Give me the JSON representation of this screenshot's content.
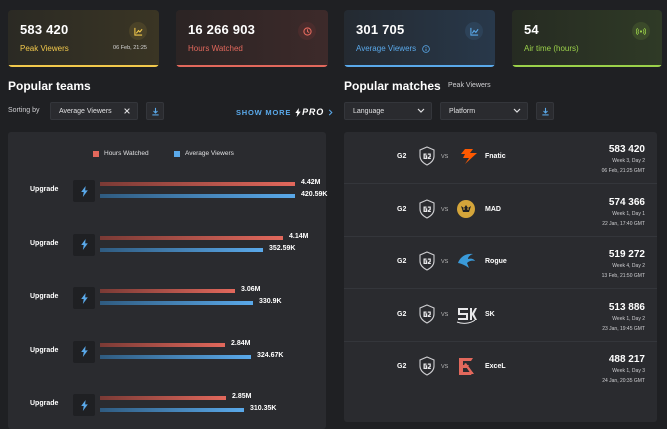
{
  "stats": [
    {
      "value": "583 420",
      "label": "Peak Viewers",
      "date": "06 Feb, 21:25",
      "icon": "chart-up-icon",
      "color": "#f2c94c"
    },
    {
      "value": "16 266 903",
      "label": "Hours Watched",
      "icon": "clock-icon",
      "color": "#e2685c"
    },
    {
      "value": "301 705",
      "label": "Average Viewers",
      "icon": "chart-avg-icon",
      "color": "#5aa9ea"
    },
    {
      "value": "54",
      "label": "Air time (hours)",
      "icon": "broadcast-icon",
      "color": "#9bd14a"
    }
  ],
  "teams": {
    "title": "Popular teams",
    "sorting_label": "Sorting by",
    "sorting_value": "Average Viewers",
    "show_more": "SHOW MORE",
    "pro_label": "PRO",
    "legend": {
      "hours": "Hours Watched",
      "avg": "Average Viewers"
    },
    "max_value": 4.42,
    "rows": [
      {
        "label": "Upgrade",
        "hours": 4.42,
        "hours_text": "4.42M",
        "avg": 420.59,
        "avg_text": "420.59K"
      },
      {
        "label": "Upgrade",
        "hours": 4.14,
        "hours_text": "4.14M",
        "avg": 352.59,
        "avg_text": "352.59K"
      },
      {
        "label": "Upgrade",
        "hours": 3.06,
        "hours_text": "3.06M",
        "avg": 330.9,
        "avg_text": "330.9K"
      },
      {
        "label": "Upgrade",
        "hours": 2.84,
        "hours_text": "2.84M",
        "avg": 324.67,
        "avg_text": "324.67K"
      },
      {
        "label": "Upgrade",
        "hours": 2.85,
        "hours_text": "2.85M",
        "avg": 310.35,
        "avg_text": "310.35K"
      }
    ]
  },
  "matches": {
    "title": "Popular matches",
    "subtitle": "Peak Viewers",
    "filters": {
      "language": "Language",
      "platform": "Platform"
    },
    "rows": [
      {
        "team_a": "G2",
        "vs": "VS",
        "team_b": "Fnatic",
        "viewers": "583 420",
        "week": "Week 3, Day 2",
        "date": "06 Feb, 21:25 GMT",
        "logo_b": "fnatic-logo-icon"
      },
      {
        "team_a": "G2",
        "vs": "VS",
        "team_b": "MAD",
        "viewers": "574 366",
        "week": "Week 1, Day 1",
        "date": "22 Jan, 17:40 GMT",
        "logo_b": "mad-lions-logo-icon"
      },
      {
        "team_a": "G2",
        "vs": "VS",
        "team_b": "Rogue",
        "viewers": "519 272",
        "week": "Week 4, Day 2",
        "date": "13 Feb, 21:50 GMT",
        "logo_b": "rogue-logo-icon"
      },
      {
        "team_a": "G2",
        "vs": "VS",
        "team_b": "SK",
        "viewers": "513 886",
        "week": "Week 1, Day 2",
        "date": "23 Jan, 19:45 GMT",
        "logo_b": "sk-logo-icon"
      },
      {
        "team_a": "G2",
        "vs": "VS",
        "team_b": "ExceL",
        "viewers": "488 217",
        "week": "Week 1, Day 3",
        "date": "24 Jan, 20:35 GMT",
        "logo_b": "excel-logo-icon"
      }
    ]
  }
}
